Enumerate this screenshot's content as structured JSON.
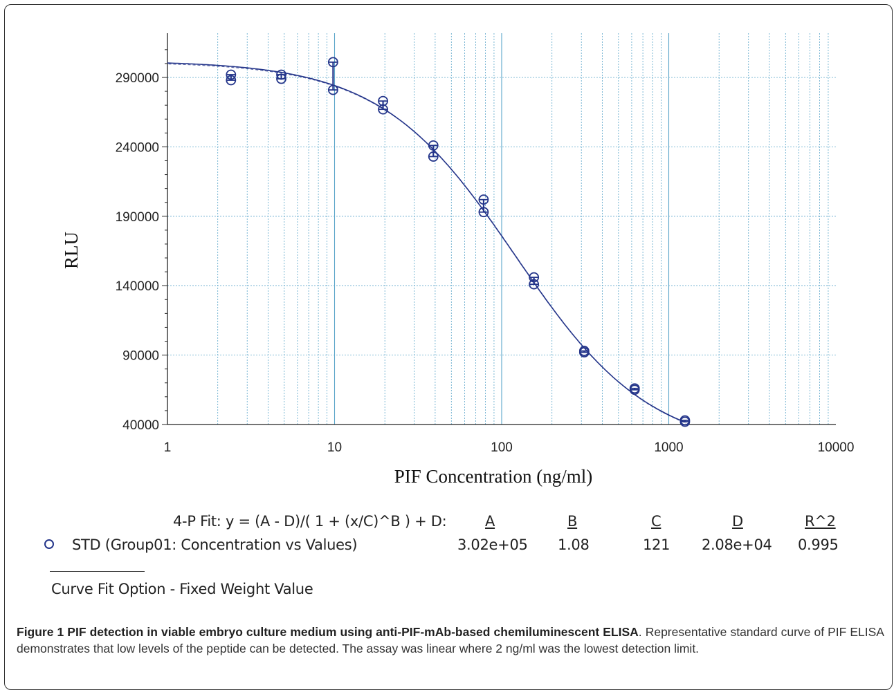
{
  "chart_data": {
    "type": "scatter",
    "xscale": "log",
    "xlim": [
      1,
      10000
    ],
    "ylim": [
      40000,
      320000
    ],
    "xlabel": "PIF Concentration (ng/ml)",
    "ylabel": "RLU",
    "x_ticks": [
      "1",
      "10",
      "100",
      "1000",
      "10000"
    ],
    "y_ticks": [
      "290000",
      "240000",
      "190000",
      "140000",
      "90000",
      "40000"
    ],
    "grid": true,
    "series": [
      {
        "name": "STD (Group01: Concentration vs Values)",
        "points": [
          {
            "x": 2.4,
            "y": 292000
          },
          {
            "x": 2.4,
            "y": 288000
          },
          {
            "x": 4.8,
            "y": 292000
          },
          {
            "x": 4.8,
            "y": 289000
          },
          {
            "x": 9.8,
            "y": 301000
          },
          {
            "x": 9.8,
            "y": 281000
          },
          {
            "x": 19.5,
            "y": 273000
          },
          {
            "x": 19.5,
            "y": 267000
          },
          {
            "x": 39,
            "y": 241000
          },
          {
            "x": 39,
            "y": 233000
          },
          {
            "x": 78,
            "y": 202000
          },
          {
            "x": 78,
            "y": 193000
          },
          {
            "x": 156,
            "y": 146000
          },
          {
            "x": 156,
            "y": 141000
          },
          {
            "x": 312,
            "y": 93000
          },
          {
            "x": 312,
            "y": 92000
          },
          {
            "x": 625,
            "y": 66000
          },
          {
            "x": 625,
            "y": 65000
          },
          {
            "x": 1250,
            "y": 43000
          },
          {
            "x": 1250,
            "y": 42000
          }
        ]
      }
    ],
    "fit": {
      "A": 302000,
      "B": 1.08,
      "C": 121,
      "D": 20800
    }
  },
  "fit_table": {
    "equation": "4-P Fit: y = (A - D)/( 1 + (x/C)^B ) + D:",
    "headers": [
      "A",
      "B",
      "C",
      "D",
      "R^2"
    ],
    "series_label": "STD (Group01: Concentration vs Values)",
    "values": [
      "3.02e+05",
      "1.08",
      "121",
      "2.08e+04",
      "0.995"
    ]
  },
  "curve_fit_option": "Curve Fit Option - Fixed Weight Value",
  "caption": {
    "bold": "Figure 1 PIF detection in viable embryo culture medium using anti-PIF-mAb-based chemiluminescent ELISA",
    "text": ". Representative standard curve of PIF ELISA demonstrates that low levels of the peptide can be detected. The assay was linear where 2 ng/ml was the lowest detection limit."
  },
  "colors": {
    "series": "#24358a",
    "grid": "#5aa5c9",
    "axis": "#222222"
  }
}
